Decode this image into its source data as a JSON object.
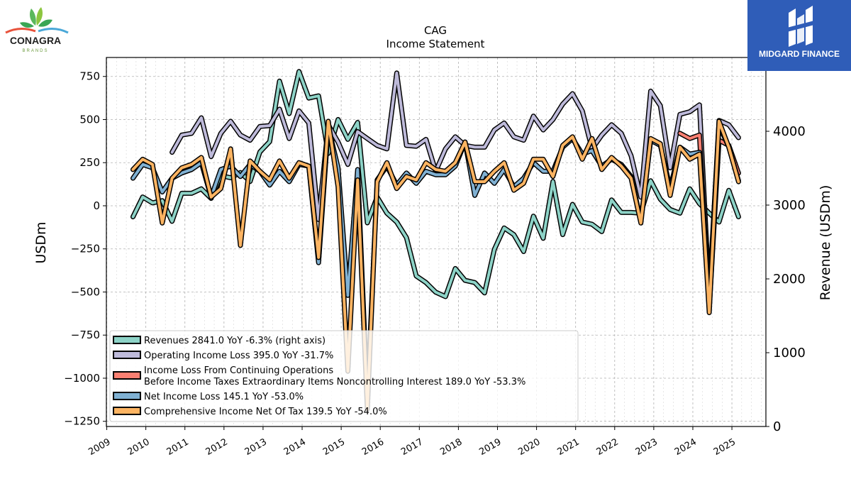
{
  "logos": {
    "left": {
      "name": "CONAGRA",
      "sub": "BRANDS"
    },
    "right": {
      "name": "MIDGARD FINANCE"
    }
  },
  "chart_data": {
    "type": "line",
    "title": "CAG",
    "subtitle": "Income Statement",
    "ylabel": "USDm",
    "ylabel_right": "Revenue (USDm)",
    "ylim": [
      -1280,
      860
    ],
    "ylim_right": [
      0,
      5000
    ],
    "yticks": [
      750,
      500,
      250,
      0,
      -250,
      -500,
      -750,
      -1000,
      -1250
    ],
    "yticks_right": [
      4000,
      3000,
      2000,
      1000,
      0
    ],
    "xlim": [
      2008.99,
      2025.87
    ],
    "xticks": [
      "2009",
      "2010",
      "2011",
      "2012",
      "2013",
      "2014",
      "2015",
      "2016",
      "2017",
      "2018",
      "2019",
      "2020",
      "2021",
      "2022",
      "2023",
      "2024",
      "2025"
    ],
    "grid": true,
    "legend_position": "lower-left",
    "series": [
      {
        "name": "Revenues",
        "legend": "Revenues  2841.0 YoY -6.3% (right axis)",
        "axis": "right",
        "color": "#8dd3c7",
        "points": [
          [
            2009.67,
            2840
          ],
          [
            2009.92,
            3110
          ],
          [
            2010.17,
            3030
          ],
          [
            2010.42,
            3060
          ],
          [
            2010.67,
            2780
          ],
          [
            2010.92,
            3160
          ],
          [
            2011.17,
            3160
          ],
          [
            2011.42,
            3220
          ],
          [
            2011.67,
            3090
          ],
          [
            2011.92,
            3400
          ],
          [
            2012.17,
            3370
          ],
          [
            2012.42,
            3440
          ],
          [
            2012.67,
            3320
          ],
          [
            2012.92,
            3720
          ],
          [
            2013.17,
            3860
          ],
          [
            2013.42,
            4680
          ],
          [
            2013.67,
            4240
          ],
          [
            2013.92,
            4810
          ],
          [
            2014.17,
            4450
          ],
          [
            2014.42,
            4480
          ],
          [
            2014.67,
            3700
          ],
          [
            2014.92,
            4160
          ],
          [
            2015.17,
            3890
          ],
          [
            2015.42,
            4120
          ],
          [
            2015.67,
            2760
          ],
          [
            2015.92,
            3110
          ],
          [
            2016.17,
            2890
          ],
          [
            2016.42,
            2770
          ],
          [
            2016.67,
            2560
          ],
          [
            2016.92,
            2040
          ],
          [
            2017.17,
            1950
          ],
          [
            2017.42,
            1820
          ],
          [
            2017.67,
            1760
          ],
          [
            2017.92,
            2140
          ],
          [
            2018.17,
            1980
          ],
          [
            2018.42,
            1950
          ],
          [
            2018.67,
            1810
          ],
          [
            2018.92,
            2400
          ],
          [
            2019.17,
            2690
          ],
          [
            2019.42,
            2600
          ],
          [
            2019.67,
            2370
          ],
          [
            2019.92,
            2850
          ],
          [
            2020.17,
            2550
          ],
          [
            2020.42,
            3320
          ],
          [
            2020.67,
            2600
          ],
          [
            2020.92,
            3010
          ],
          [
            2021.17,
            2770
          ],
          [
            2021.42,
            2740
          ],
          [
            2021.67,
            2640
          ],
          [
            2021.92,
            3070
          ],
          [
            2022.17,
            2900
          ],
          [
            2022.42,
            2900
          ],
          [
            2022.67,
            2890
          ],
          [
            2022.92,
            3330
          ],
          [
            2023.17,
            3080
          ],
          [
            2023.42,
            2940
          ],
          [
            2023.67,
            2890
          ],
          [
            2023.92,
            3220
          ],
          [
            2024.17,
            3020
          ],
          [
            2024.42,
            2890
          ],
          [
            2024.67,
            2770
          ],
          [
            2024.92,
            3200
          ],
          [
            2025.17,
            2841
          ]
        ]
      },
      {
        "name": "Operating Income Loss",
        "legend": "Operating Income Loss  395.0 YoY -31.7%",
        "axis": "left",
        "color": "#bebada",
        "points": [
          [
            2010.67,
            310
          ],
          [
            2010.92,
            410
          ],
          [
            2011.17,
            420
          ],
          [
            2011.42,
            510
          ],
          [
            2011.67,
            285
          ],
          [
            2011.92,
            420
          ],
          [
            2012.17,
            490
          ],
          [
            2012.42,
            410
          ],
          [
            2012.67,
            380
          ],
          [
            2012.92,
            460
          ],
          [
            2013.17,
            465
          ],
          [
            2013.42,
            560
          ],
          [
            2013.67,
            390
          ],
          [
            2013.92,
            550
          ],
          [
            2014.17,
            480
          ],
          [
            2014.42,
            -80
          ],
          [
            2014.67,
            470
          ],
          [
            2014.92,
            370
          ],
          [
            2015.17,
            240
          ],
          [
            2015.42,
            430
          ],
          [
            2015.67,
            390
          ],
          [
            2015.92,
            350
          ],
          [
            2016.17,
            330
          ],
          [
            2016.42,
            770
          ],
          [
            2016.67,
            350
          ],
          [
            2016.92,
            345
          ],
          [
            2017.17,
            385
          ],
          [
            2017.42,
            200
          ],
          [
            2017.67,
            330
          ],
          [
            2017.92,
            400
          ],
          [
            2018.17,
            350
          ],
          [
            2018.42,
            340
          ],
          [
            2018.67,
            340
          ],
          [
            2018.92,
            440
          ],
          [
            2019.17,
            480
          ],
          [
            2019.42,
            400
          ],
          [
            2019.67,
            380
          ],
          [
            2019.92,
            520
          ],
          [
            2020.17,
            440
          ],
          [
            2020.42,
            500
          ],
          [
            2020.67,
            590
          ],
          [
            2020.92,
            650
          ],
          [
            2021.17,
            550
          ],
          [
            2021.42,
            330
          ],
          [
            2021.67,
            410
          ],
          [
            2021.92,
            470
          ],
          [
            2022.17,
            420
          ],
          [
            2022.42,
            290
          ],
          [
            2022.67,
            50
          ],
          [
            2022.92,
            665
          ],
          [
            2023.17,
            580
          ],
          [
            2023.42,
            220
          ],
          [
            2023.67,
            530
          ],
          [
            2023.92,
            545
          ],
          [
            2024.17,
            585
          ],
          [
            2024.42,
            -520
          ],
          [
            2024.67,
            495
          ],
          [
            2024.92,
            470
          ],
          [
            2025.17,
            395
          ]
        ]
      },
      {
        "name": "Income Loss From Continuing Operations Before Income Taxes Extraordinary Items Noncontrolling Interest",
        "legend": "Income Loss From Continuing Operations\nBefore Income Taxes Extraordinary Items Noncontrolling Interest  189.0 YoY -53.3%",
        "axis": "left",
        "color": "#fb8072",
        "points": [
          [
            2023.67,
            420
          ],
          [
            2023.92,
            390
          ],
          [
            2024.17,
            410
          ],
          [
            2024.42,
            -600
          ],
          [
            2024.67,
            380
          ],
          [
            2024.92,
            350
          ],
          [
            2025.17,
            189
          ]
        ]
      },
      {
        "name": "Net Income Loss",
        "legend": "Net Income Loss  145.1 YoY -53.0%",
        "axis": "left",
        "color": "#80b1d3",
        "points": [
          [
            2009.67,
            160
          ],
          [
            2009.92,
            240
          ],
          [
            2010.17,
            220
          ],
          [
            2010.42,
            80
          ],
          [
            2010.67,
            160
          ],
          [
            2010.92,
            190
          ],
          [
            2011.17,
            210
          ],
          [
            2011.42,
            250
          ],
          [
            2011.67,
            50
          ],
          [
            2011.92,
            210
          ],
          [
            2012.17,
            230
          ],
          [
            2012.42,
            170
          ],
          [
            2012.67,
            240
          ],
          [
            2012.92,
            200
          ],
          [
            2013.17,
            120
          ],
          [
            2013.42,
            200
          ],
          [
            2013.67,
            140
          ],
          [
            2013.92,
            240
          ],
          [
            2014.17,
            230
          ],
          [
            2014.42,
            -330
          ],
          [
            2014.67,
            460
          ],
          [
            2014.92,
            220
          ],
          [
            2015.17,
            -520
          ],
          [
            2015.42,
            210
          ],
          [
            2015.67,
            -1130
          ],
          [
            2015.92,
            150
          ],
          [
            2016.17,
            230
          ],
          [
            2016.42,
            120
          ],
          [
            2016.67,
            190
          ],
          [
            2016.92,
            130
          ],
          [
            2017.17,
            200
          ],
          [
            2017.42,
            180
          ],
          [
            2017.67,
            180
          ],
          [
            2017.92,
            230
          ],
          [
            2018.17,
            370
          ],
          [
            2018.42,
            60
          ],
          [
            2018.67,
            190
          ],
          [
            2018.92,
            130
          ],
          [
            2019.17,
            210
          ],
          [
            2019.42,
            110
          ],
          [
            2019.67,
            160
          ],
          [
            2019.92,
            250
          ],
          [
            2020.17,
            200
          ],
          [
            2020.42,
            200
          ],
          [
            2020.67,
            340
          ],
          [
            2020.92,
            390
          ],
          [
            2021.17,
            300
          ],
          [
            2021.42,
            320
          ],
          [
            2021.67,
            230
          ],
          [
            2021.92,
            270
          ],
          [
            2022.17,
            240
          ],
          [
            2022.42,
            170
          ],
          [
            2022.67,
            -90
          ],
          [
            2022.92,
            380
          ],
          [
            2023.17,
            350
          ],
          [
            2023.42,
            100
          ],
          [
            2023.67,
            340
          ],
          [
            2023.92,
            300
          ],
          [
            2024.17,
            310
          ],
          [
            2024.42,
            -570
          ],
          [
            2024.67,
            470
          ],
          [
            2024.92,
            340
          ],
          [
            2025.17,
            145.1
          ]
        ]
      },
      {
        "name": "Comprehensive Income Net Of Tax",
        "legend": "Comprehensive Income Net Of Tax  139.5 YoY -54.0%",
        "axis": "left",
        "color": "#fdb462",
        "points": [
          [
            2009.67,
            210
          ],
          [
            2009.92,
            270
          ],
          [
            2010.17,
            240
          ],
          [
            2010.42,
            -100
          ],
          [
            2010.67,
            160
          ],
          [
            2010.92,
            220
          ],
          [
            2011.17,
            240
          ],
          [
            2011.42,
            280
          ],
          [
            2011.67,
            50
          ],
          [
            2011.92,
            100
          ],
          [
            2012.17,
            330
          ],
          [
            2012.42,
            -230
          ],
          [
            2012.67,
            260
          ],
          [
            2012.92,
            200
          ],
          [
            2013.17,
            150
          ],
          [
            2013.42,
            260
          ],
          [
            2013.67,
            160
          ],
          [
            2013.92,
            250
          ],
          [
            2014.17,
            230
          ],
          [
            2014.42,
            -300
          ],
          [
            2014.67,
            490
          ],
          [
            2014.92,
            110
          ],
          [
            2015.17,
            -960
          ],
          [
            2015.42,
            150
          ],
          [
            2015.67,
            -1180
          ],
          [
            2015.92,
            140
          ],
          [
            2016.17,
            250
          ],
          [
            2016.42,
            100
          ],
          [
            2016.67,
            170
          ],
          [
            2016.92,
            150
          ],
          [
            2017.17,
            250
          ],
          [
            2017.42,
            210
          ],
          [
            2017.67,
            200
          ],
          [
            2017.92,
            250
          ],
          [
            2018.17,
            370
          ],
          [
            2018.42,
            140
          ],
          [
            2018.67,
            140
          ],
          [
            2018.92,
            200
          ],
          [
            2019.17,
            250
          ],
          [
            2019.42,
            90
          ],
          [
            2019.67,
            130
          ],
          [
            2019.92,
            270
          ],
          [
            2020.17,
            270
          ],
          [
            2020.42,
            170
          ],
          [
            2020.67,
            350
          ],
          [
            2020.92,
            400
          ],
          [
            2021.17,
            270
          ],
          [
            2021.42,
            390
          ],
          [
            2021.67,
            210
          ],
          [
            2021.92,
            280
          ],
          [
            2022.17,
            230
          ],
          [
            2022.42,
            160
          ],
          [
            2022.67,
            -100
          ],
          [
            2022.92,
            390
          ],
          [
            2023.17,
            360
          ],
          [
            2023.42,
            60
          ],
          [
            2023.67,
            340
          ],
          [
            2023.92,
            270
          ],
          [
            2024.17,
            300
          ],
          [
            2024.42,
            -620
          ],
          [
            2024.67,
            490
          ],
          [
            2024.92,
            340
          ],
          [
            2025.17,
            139.5
          ]
        ]
      }
    ]
  }
}
